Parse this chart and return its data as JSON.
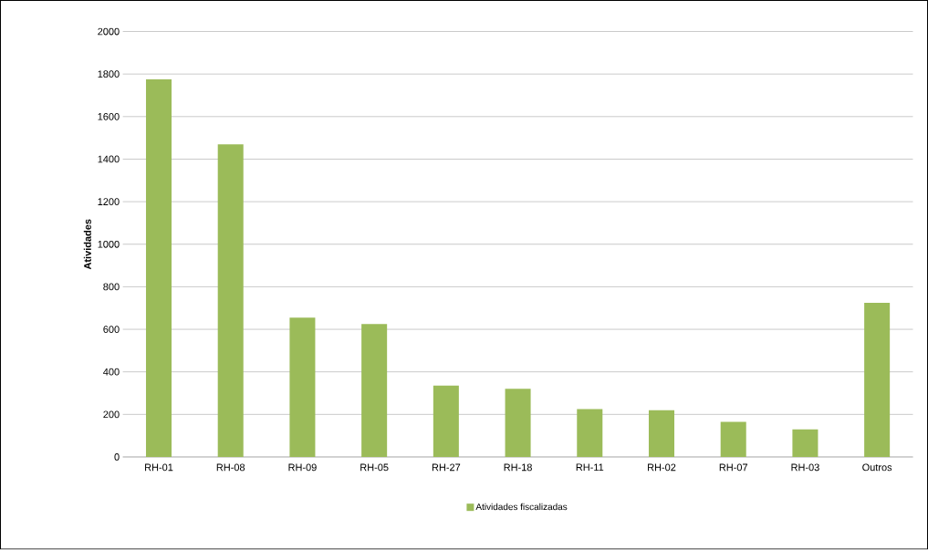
{
  "chart_data": {
    "type": "bar",
    "ylabel": "Atividades",
    "categories": [
      "RH-01",
      "RH-08",
      "RH-09",
      "RH-05",
      "RH-27",
      "RH-18",
      "RH-11",
      "RH-02",
      "RH-07",
      "RH-03",
      "Outros"
    ],
    "series": [
      {
        "name": "Atividades fiscalizadas",
        "color": "#9bbb59",
        "values": [
          1775,
          1470,
          655,
          625,
          335,
          320,
          225,
          220,
          165,
          130,
          725
        ]
      }
    ],
    "ylim": [
      0,
      2000
    ],
    "yticks": [
      0,
      200,
      400,
      600,
      800,
      1000,
      1200,
      1400,
      1600,
      1800,
      2000
    ],
    "grid": "y",
    "legend": "bottom"
  }
}
